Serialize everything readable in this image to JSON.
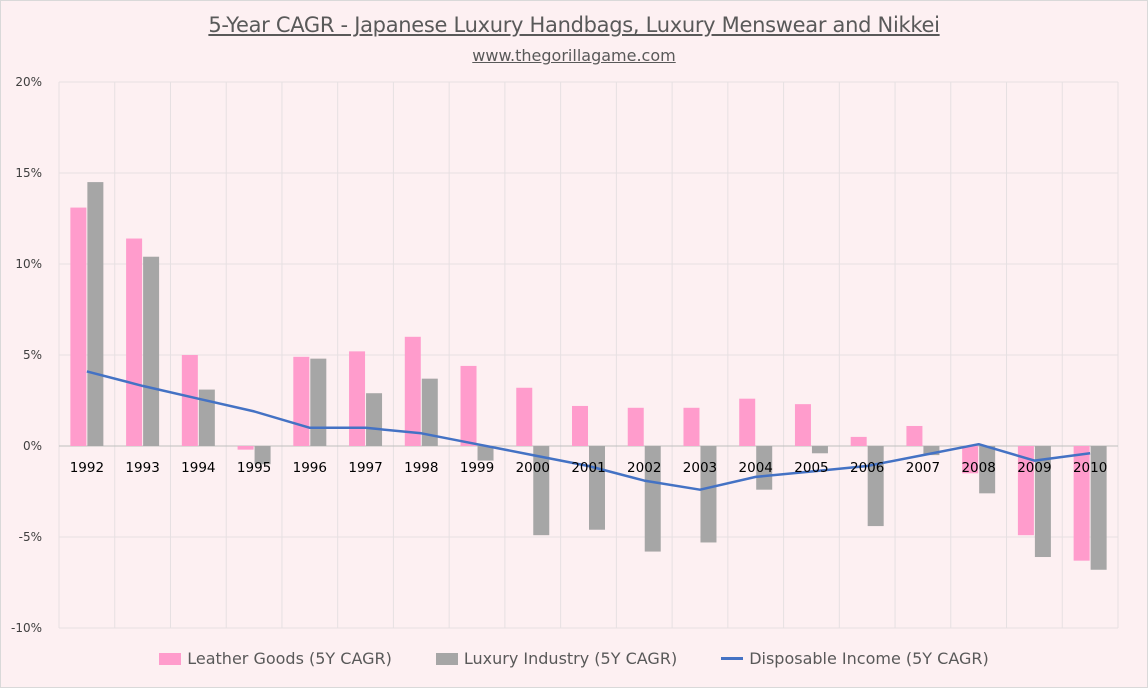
{
  "chart_data": {
    "type": "bar",
    "title": "5-Year CAGR - Japanese Luxury Handbags, Luxury Menswear and Nikkei",
    "subtitle": "www.thegorillagame.com",
    "categories": [
      "1992",
      "1993",
      "1994",
      "1995",
      "1996",
      "1997",
      "1998",
      "1999",
      "2000",
      "2001",
      "2002",
      "2003",
      "2004",
      "2005",
      "2006",
      "2007",
      "2008",
      "2009",
      "2010"
    ],
    "y_ticks": [
      "-10%",
      "-5%",
      "0%",
      "5%",
      "10%",
      "15%",
      "20%"
    ],
    "ylim": [
      -10,
      20
    ],
    "grid": true,
    "legend_position": "bottom",
    "series": [
      {
        "name": "Leather Goods (5Y CAGR)",
        "kind": "bar",
        "color": "#ff9ccc",
        "values": [
          13.1,
          11.4,
          5.0,
          -0.2,
          4.9,
          5.2,
          6.0,
          4.4,
          3.2,
          2.2,
          2.1,
          2.1,
          2.6,
          2.3,
          0.5,
          1.1,
          -1.5,
          -4.9,
          -6.3
        ]
      },
      {
        "name": "Luxury Industry (5Y CAGR)",
        "kind": "bar",
        "color": "#a6a6a6",
        "values": [
          14.5,
          10.4,
          3.1,
          -1.0,
          4.8,
          2.9,
          3.7,
          -0.8,
          -4.9,
          -4.6,
          -5.8,
          -5.3,
          -2.4,
          -0.4,
          -4.4,
          -0.5,
          -2.6,
          -6.1,
          -6.8
        ]
      },
      {
        "name": "Disposable Income (5Y CAGR)",
        "kind": "line",
        "color": "#4472c4",
        "values": [
          4.1,
          3.3,
          2.6,
          1.9,
          1.0,
          1.0,
          0.7,
          0.1,
          -0.5,
          -1.1,
          -1.9,
          -2.4,
          -1.7,
          -1.4,
          -1.1,
          -0.5,
          0.1,
          -0.8,
          -0.4
        ]
      }
    ]
  }
}
